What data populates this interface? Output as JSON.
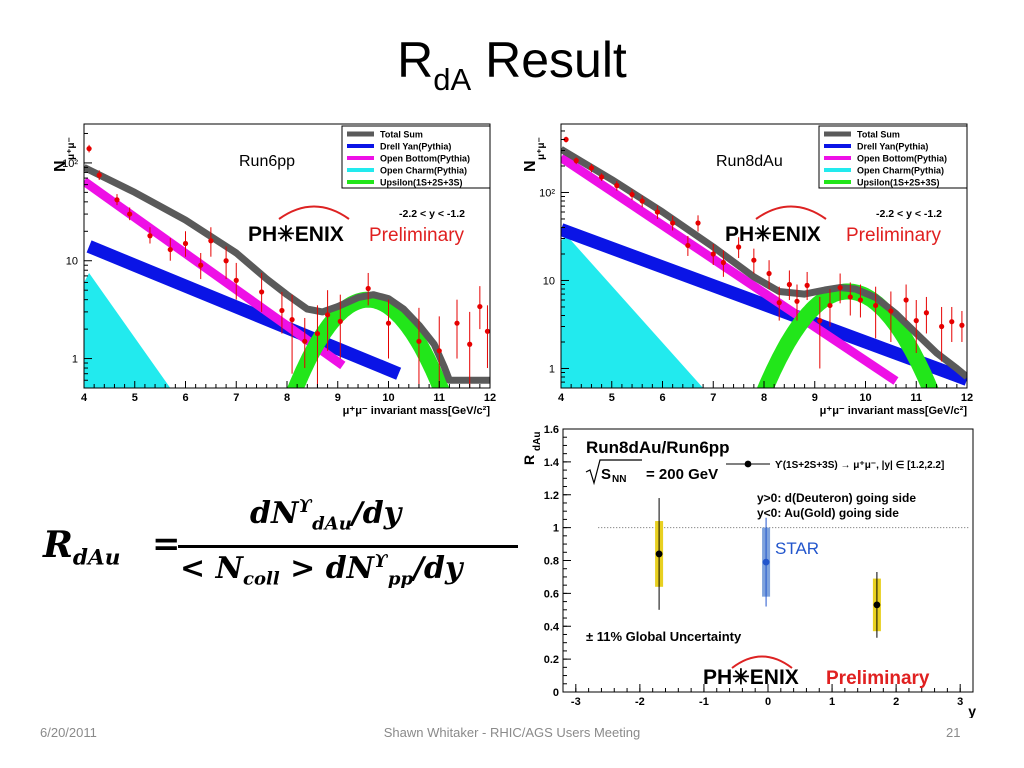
{
  "slide": {
    "title_main": "R",
    "title_sub": "dA",
    "title_rest": " Result",
    "footer_date": "6/20/2011",
    "footer_center": "Shawn Whitaker - RHIC/AGS Users Meeting",
    "footer_page": "21"
  },
  "formula": {
    "lhs": "R",
    "lhs_sub": "dAu",
    "equals": "=",
    "numerator": "dN",
    "numerator_sup": "ϒ",
    "numerator_sub": "dAu",
    "numerator_tail": "/dy",
    "denominator_head": "< N",
    "denominator_sub1": "coll",
    "denominator_mid": " > dN",
    "denominator_sup": "ϒ",
    "denominator_sub2": "pp",
    "denominator_tail": "/dy"
  },
  "colors": {
    "total_sum": "#5a5a5a",
    "drell_yan": "#0a14e6",
    "open_bottom": "#ee10e6",
    "open_charm": "#22eaee",
    "upsilon": "#22e61a",
    "data_points": "#e60000",
    "preliminary": "#e02020",
    "star": "#2255cc",
    "phenix_band": "#e8d020",
    "star_band": "#7ea2dc"
  },
  "chart_data": [
    {
      "type": "line",
      "label": "Run6pp",
      "ylabel": "N",
      "ylabel_sub": "μ⁺μ⁻",
      "xlabel": "μ⁺μ⁻ invariant mass[GeV/c²]",
      "xlim": [
        4,
        12
      ],
      "ylim": [
        0.5,
        250
      ],
      "yscale": "log",
      "x_ticks": [
        "4",
        "5",
        "6",
        "7",
        "8",
        "9",
        "10",
        "11",
        "12"
      ],
      "y_ticks": [
        {
          "v": 1,
          "t": "1"
        },
        {
          "v": 10,
          "t": "10"
        },
        {
          "v": 100,
          "t": "10²"
        }
      ],
      "cut_text": "-2.2 < y < -1.2",
      "phenix": "PH✳ENIX",
      "preliminary": "Preliminary",
      "legend": [
        "Total Sum",
        "Drell Yan(Pythia)",
        "Open Bottom(Pythia)",
        "Open Charm(Pythia)",
        "Upsilon(1S+2S+3S)"
      ],
      "series": {
        "total_sum": [
          [
            4.0,
            90
          ],
          [
            5.0,
            50
          ],
          [
            6.0,
            26
          ],
          [
            7.0,
            12
          ],
          [
            7.6,
            6.5
          ],
          [
            8.0,
            4.5
          ],
          [
            8.4,
            3.2
          ],
          [
            8.7,
            3.0
          ],
          [
            9.0,
            3.4
          ],
          [
            9.4,
            4.2
          ],
          [
            9.7,
            4.5
          ],
          [
            10.0,
            4.1
          ],
          [
            10.3,
            3.2
          ],
          [
            10.6,
            2.2
          ],
          [
            10.9,
            1.4
          ],
          [
            11.1,
            0.82
          ],
          [
            11.2,
            0.6
          ],
          [
            12.0,
            0.6
          ]
        ],
        "drell_yan": [
          [
            4.1,
            14
          ],
          [
            10.2,
            0.7
          ]
        ],
        "drell_yan_width": 13,
        "open_bottom": [
          [
            4.0,
            65
          ],
          [
            9.1,
            0.85
          ]
        ],
        "open_bottom_width": 9,
        "open_charm_poly": [
          [
            4.0,
            6.0
          ],
          [
            4.1,
            7.5
          ],
          [
            5.7,
            0.5
          ],
          [
            4.0,
            0.5
          ]
        ],
        "upsilon": {
          "mu": 9.6,
          "peak": 4.0,
          "sigma": 0.7,
          "width": 16
        },
        "points": [
          {
            "x": 4.1,
            "y": 140,
            "lo": 128,
            "hi": 153
          },
          {
            "x": 4.3,
            "y": 75,
            "lo": 67,
            "hi": 84
          },
          {
            "x": 4.65,
            "y": 42,
            "lo": 37,
            "hi": 48
          },
          {
            "x": 4.9,
            "y": 30,
            "lo": 26,
            "hi": 35
          },
          {
            "x": 5.3,
            "y": 18,
            "lo": 15,
            "hi": 22
          },
          {
            "x": 5.7,
            "y": 13,
            "lo": 10,
            "hi": 17
          },
          {
            "x": 6.0,
            "y": 15,
            "lo": 11,
            "hi": 20
          },
          {
            "x": 6.3,
            "y": 9,
            "lo": 6.5,
            "hi": 12
          },
          {
            "x": 6.5,
            "y": 16,
            "lo": 11,
            "hi": 22
          },
          {
            "x": 6.8,
            "y": 10,
            "lo": 6.5,
            "hi": 14
          },
          {
            "x": 7.0,
            "y": 6.3,
            "lo": 4,
            "hi": 9.5
          },
          {
            "x": 7.5,
            "y": 4.8,
            "lo": 3,
            "hi": 7.5
          },
          {
            "x": 7.9,
            "y": 3.1,
            "lo": 1.8,
            "hi": 4.8
          },
          {
            "x": 8.1,
            "y": 2.5,
            "lo": 0.7,
            "hi": 4.5
          },
          {
            "x": 8.35,
            "y": 1.5,
            "lo": 0.8,
            "hi": 2.6
          },
          {
            "x": 8.6,
            "y": 1.8,
            "lo": 0.5,
            "hi": 3.5
          },
          {
            "x": 8.8,
            "y": 2.8,
            "lo": 1.2,
            "hi": 5.0
          },
          {
            "x": 9.05,
            "y": 2.4,
            "lo": 1.0,
            "hi": 4.5
          },
          {
            "x": 9.6,
            "y": 5.2,
            "lo": 3.5,
            "hi": 7.5
          },
          {
            "x": 10.0,
            "y": 2.3,
            "lo": 1.0,
            "hi": 4.0
          },
          {
            "x": 10.6,
            "y": 1.5,
            "lo": 0.5,
            "hi": 3.3
          },
          {
            "x": 11.0,
            "y": 1.2,
            "lo": 0.5,
            "hi": 2.7
          },
          {
            "x": 11.35,
            "y": 2.3,
            "lo": 1.0,
            "hi": 4.0
          },
          {
            "x": 11.6,
            "y": 1.4,
            "lo": 0.5,
            "hi": 3.0
          },
          {
            "x": 11.8,
            "y": 3.4,
            "lo": 2.0,
            "hi": 5.5
          },
          {
            "x": 11.95,
            "y": 1.9,
            "lo": 0.8,
            "hi": 3.5
          }
        ]
      }
    },
    {
      "type": "line",
      "label": "Run8dAu",
      "ylabel": "N",
      "ylabel_sub": "μ⁺μ⁻",
      "xlabel": "μ⁺μ⁻ invariant mass[GeV/c²]",
      "xlim": [
        4,
        12
      ],
      "ylim": [
        0.6,
        600
      ],
      "yscale": "log",
      "x_ticks": [
        "4",
        "5",
        "6",
        "7",
        "8",
        "9",
        "10",
        "11",
        "12"
      ],
      "y_ticks": [
        {
          "v": 1,
          "t": "1"
        },
        {
          "v": 10,
          "t": "10"
        },
        {
          "v": 100,
          "t": "10²"
        }
      ],
      "cut_text": "-2.2 < y < -1.2",
      "phenix": "PH✳ENIX",
      "preliminary": "Preliminary",
      "legend": [
        "Total Sum",
        "Drell Yan(Pythia)",
        "Open Bottom(Pythia)",
        "Open Charm(Pythia)",
        "Upsilon(1S+2S+3S)"
      ],
      "series": {
        "total_sum": [
          [
            4.0,
            310
          ],
          [
            5.0,
            140
          ],
          [
            6.0,
            60
          ],
          [
            7.0,
            24
          ],
          [
            7.8,
            11
          ],
          [
            8.3,
            7.5
          ],
          [
            8.8,
            7.0
          ],
          [
            9.2,
            7.8
          ],
          [
            9.5,
            8.3
          ],
          [
            9.8,
            8.0
          ],
          [
            10.2,
            6.4
          ],
          [
            10.6,
            4.2
          ],
          [
            11.0,
            2.5
          ],
          [
            11.4,
            1.5
          ],
          [
            11.8,
            1.0
          ],
          [
            12.0,
            0.8
          ]
        ],
        "drell_yan": [
          [
            4.0,
            38
          ],
          [
            12.0,
            0.75
          ]
        ],
        "drell_yan_width": 13,
        "open_bottom": [
          [
            4.0,
            250
          ],
          [
            10.6,
            0.72
          ]
        ],
        "open_bottom_width": 9,
        "open_charm_poly": [
          [
            4.0,
            28
          ],
          [
            4.1,
            33
          ],
          [
            6.8,
            0.6
          ],
          [
            4.0,
            0.6
          ]
        ],
        "upsilon": {
          "mu": 9.65,
          "peak": 7.5,
          "sigma": 0.72,
          "width": 16
        },
        "points": [
          {
            "x": 4.1,
            "y": 400,
            "lo": 370,
            "hi": 430
          },
          {
            "x": 4.3,
            "y": 230,
            "lo": 210,
            "hi": 250
          },
          {
            "x": 4.6,
            "y": 190,
            "lo": 170,
            "hi": 210
          },
          {
            "x": 4.8,
            "y": 150,
            "lo": 135,
            "hi": 165
          },
          {
            "x": 5.1,
            "y": 120,
            "lo": 105,
            "hi": 135
          },
          {
            "x": 5.4,
            "y": 95,
            "lo": 82,
            "hi": 108
          },
          {
            "x": 5.6,
            "y": 80,
            "lo": 68,
            "hi": 92
          },
          {
            "x": 5.9,
            "y": 60,
            "lo": 50,
            "hi": 71
          },
          {
            "x": 6.2,
            "y": 45,
            "lo": 37,
            "hi": 54
          },
          {
            "x": 6.5,
            "y": 25,
            "lo": 19,
            "hi": 32
          },
          {
            "x": 6.7,
            "y": 45,
            "lo": 36,
            "hi": 55
          },
          {
            "x": 7.0,
            "y": 20,
            "lo": 15,
            "hi": 26
          },
          {
            "x": 7.2,
            "y": 16,
            "lo": 11,
            "hi": 22
          },
          {
            "x": 7.5,
            "y": 24,
            "lo": 18,
            "hi": 31
          },
          {
            "x": 7.8,
            "y": 17,
            "lo": 12,
            "hi": 23
          },
          {
            "x": 8.1,
            "y": 12,
            "lo": 8,
            "hi": 17
          },
          {
            "x": 8.3,
            "y": 5.6,
            "lo": 3.5,
            "hi": 8.5
          },
          {
            "x": 8.5,
            "y": 9,
            "lo": 6,
            "hi": 13
          },
          {
            "x": 8.65,
            "y": 5.8,
            "lo": 3.5,
            "hi": 9
          },
          {
            "x": 8.85,
            "y": 8.8,
            "lo": 6,
            "hi": 12.5
          },
          {
            "x": 9.1,
            "y": 3.5,
            "lo": 1.0,
            "hi": 6.5
          },
          {
            "x": 9.3,
            "y": 5.2,
            "lo": 3.0,
            "hi": 8.0
          },
          {
            "x": 9.5,
            "y": 8.3,
            "lo": 5.5,
            "hi": 12
          },
          {
            "x": 9.7,
            "y": 6.5,
            "lo": 4.0,
            "hi": 9.5
          },
          {
            "x": 9.9,
            "y": 6.0,
            "lo": 3.8,
            "hi": 9.0
          },
          {
            "x": 10.2,
            "y": 5.2,
            "lo": 2.2,
            "hi": 8.5
          },
          {
            "x": 10.5,
            "y": 4.5,
            "lo": 2.0,
            "hi": 7.5
          },
          {
            "x": 10.8,
            "y": 6.0,
            "lo": 3.5,
            "hi": 9.0
          },
          {
            "x": 11.0,
            "y": 3.5,
            "lo": 1.5,
            "hi": 6.0
          },
          {
            "x": 11.2,
            "y": 4.3,
            "lo": 2.5,
            "hi": 6.5
          },
          {
            "x": 11.5,
            "y": 3.0,
            "lo": 1.2,
            "hi": 5.0
          },
          {
            "x": 11.7,
            "y": 3.4,
            "lo": 2.0,
            "hi": 5.0
          },
          {
            "x": 11.9,
            "y": 3.1,
            "lo": 2.0,
            "hi": 4.5
          }
        ]
      }
    },
    {
      "type": "scatter",
      "title": "Run8dAu/Run6pp",
      "sqrt_label": "S",
      "sqrt_sub": "NN",
      "energy": "= 200 GeV",
      "legend_text": "ϒ(1S+2S+3S) → μ⁺μ⁻, |y| ∈ [1.2,2.2]",
      "note1": "y>0: d(Deuteron) going side",
      "note2": "y<0: Au(Gold) going side",
      "star_label": "STAR",
      "global_unc": "± 11% Global Uncertainty",
      "phenix": "PH✳ENIX",
      "preliminary": "Preliminary",
      "ylabel": "R",
      "ylabel_sub": "dAu",
      "xlabel": "y",
      "xlim": [
        -3.2,
        3.2
      ],
      "ylim": [
        0,
        1.6
      ],
      "x_ticks": [
        "-3",
        "-2",
        "-1",
        "0",
        "1",
        "2",
        "3"
      ],
      "y_ticks": [
        "0",
        "0.2",
        "0.4",
        "0.6",
        "0.8",
        "1",
        "1.2",
        "1.4",
        "1.6"
      ],
      "reference_line": 1,
      "points": [
        {
          "x": -1.7,
          "y": 0.84,
          "stat_lo": 0.5,
          "stat_hi": 1.18,
          "sys_lo": 0.64,
          "sys_hi": 1.04,
          "set": "phenix"
        },
        {
          "x": -0.03,
          "y": 0.79,
          "stat_lo": 0.52,
          "stat_hi": 1.06,
          "sys_lo": 0.58,
          "sys_hi": 1.0,
          "set": "star"
        },
        {
          "x": 1.7,
          "y": 0.53,
          "stat_lo": 0.33,
          "stat_hi": 0.73,
          "sys_lo": 0.37,
          "sys_hi": 0.69,
          "set": "phenix"
        }
      ]
    }
  ]
}
